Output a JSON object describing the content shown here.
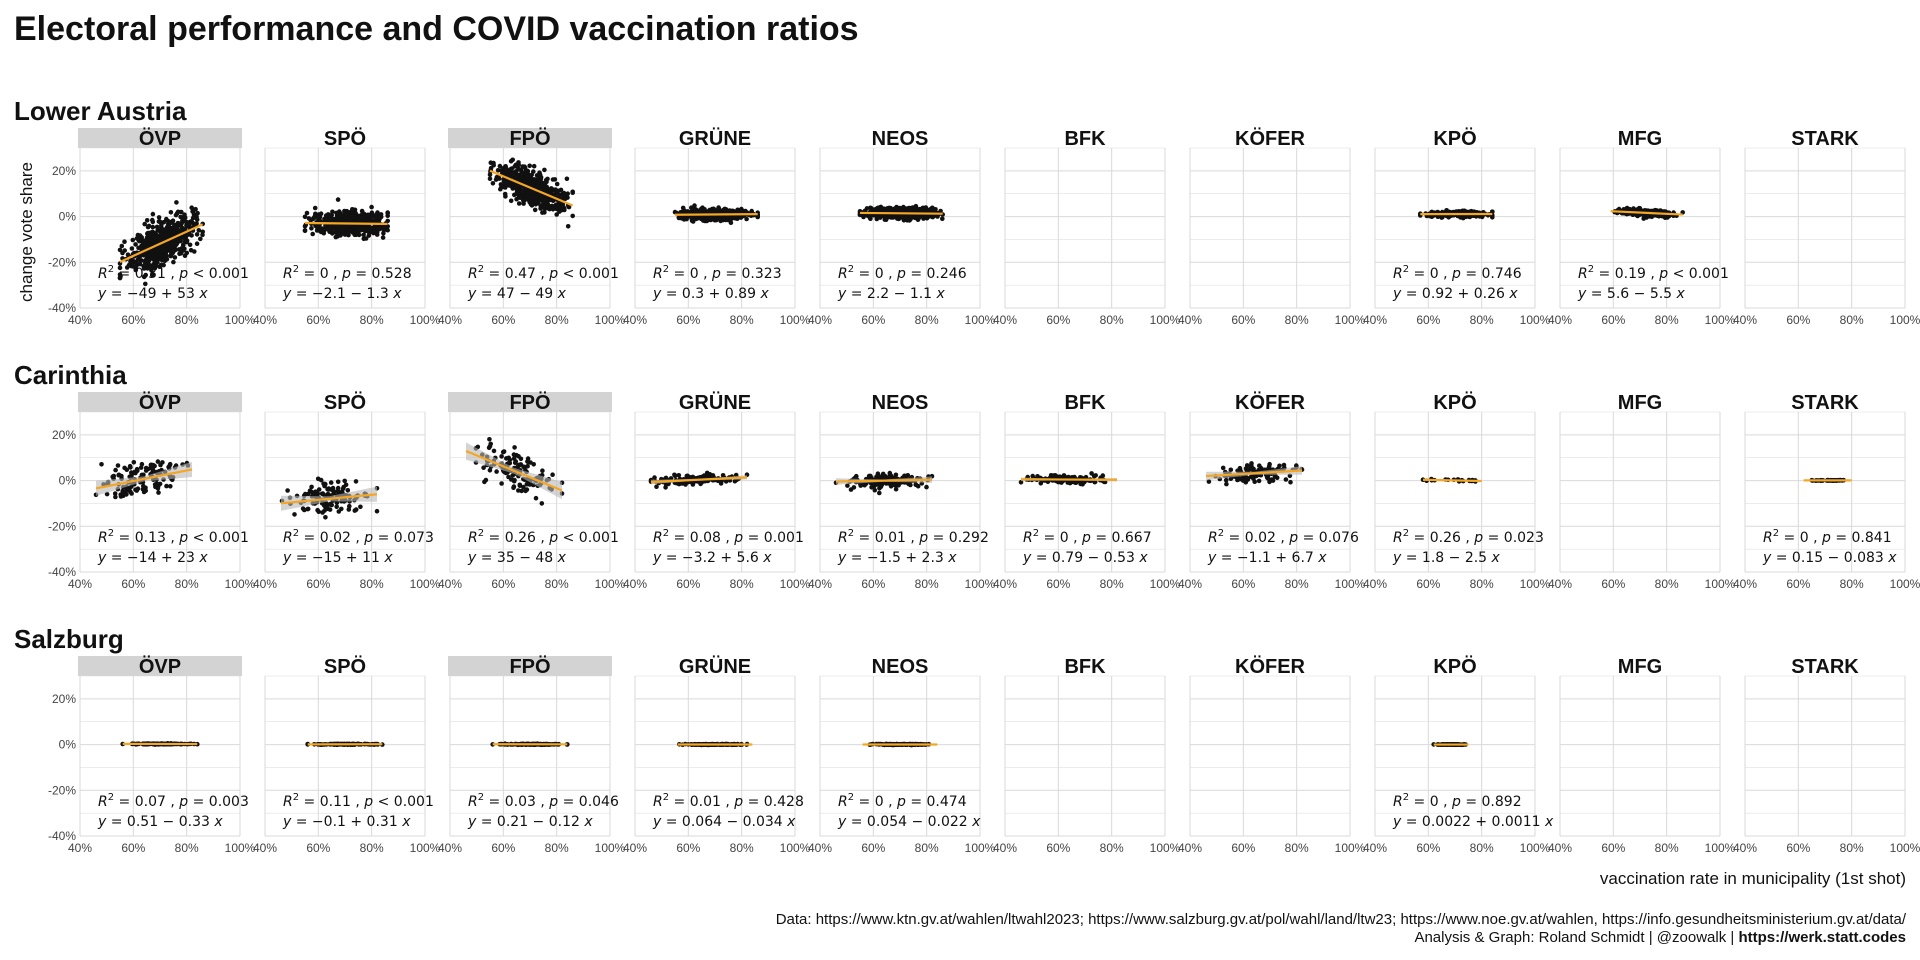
{
  "title": "Electoral performance and COVID vaccination ratios",
  "x_axis_title": "vaccination rate in municipality (1st shot)",
  "y_axis_title": "change vote share",
  "caption_line1": "Data: https://www.ktn.gv.at/wahlen/ltwahl2023; https://www.salzburg.gv.at/pol/wahl/land/ltw23; https://www.noe.gv.at/wahlen, https://info.gesundheitsministerium.gv.at/data/",
  "caption_line2_prefix": "Analysis & Graph: Roland Schmidt | @zoowalk | ",
  "caption_line2_link": "https://werk.statt.codes",
  "colors": {
    "point": "#111111",
    "fit": "#f5a623",
    "ribbon": "#b8b8b8",
    "grid": "#d9d9d9",
    "strip_highlight": "#d3d3d3"
  },
  "chart_data": {
    "type": "scatter",
    "x_ticks": [
      "40%",
      "60%",
      "80%",
      "100%"
    ],
    "y_ticks": [
      "20%",
      "0%",
      "-20%",
      "-40%"
    ],
    "xlim": [
      0.4,
      1.0
    ],
    "ylim": [
      -0.4,
      0.3
    ],
    "parties": [
      "ÖVP",
      "SPÖ",
      "FPÖ",
      "GRÜNE",
      "NEOS",
      "BFK",
      "KÖFER",
      "KPÖ",
      "MFG",
      "STARK"
    ],
    "highlighted_parties": [
      "ÖVP",
      "FPÖ"
    ],
    "regions": [
      {
        "name": "Lower Austria",
        "panels": [
          {
            "party": "ÖVP",
            "r2": "0.31",
            "p": "< 0.001",
            "eq": "−49 + 53",
            "intercept": -0.49,
            "slope": 0.53,
            "n": 560,
            "sd": 0.05,
            "x_range": [
              0.55,
              0.86
            ],
            "ribbon": false
          },
          {
            "party": "SPÖ",
            "r2": "0",
            "p": "= 0.528",
            "eq": "−2.1 − 1.3",
            "intercept": -0.021,
            "slope": -0.013,
            "n": 560,
            "sd": 0.025,
            "x_range": [
              0.55,
              0.86
            ],
            "ribbon": false
          },
          {
            "party": "FPÖ",
            "r2": "0.47",
            "p": "< 0.001",
            "eq": "47 − 49",
            "intercept": 0.47,
            "slope": -0.49,
            "n": 560,
            "sd": 0.035,
            "x_range": [
              0.55,
              0.86
            ],
            "ribbon": false
          },
          {
            "party": "GRÜNE",
            "r2": "0",
            "p": "= 0.323",
            "eq": "0.3 + 0.89",
            "intercept": 0.003,
            "slope": 0.0089,
            "n": 560,
            "sd": 0.012,
            "x_range": [
              0.55,
              0.86
            ],
            "ribbon": false
          },
          {
            "party": "NEOS",
            "r2": "0",
            "p": "= 0.246",
            "eq": "2.2 − 1.1",
            "intercept": 0.022,
            "slope": -0.011,
            "n": 560,
            "sd": 0.012,
            "x_range": [
              0.55,
              0.86
            ],
            "ribbon": false
          },
          {
            "party": "BFK",
            "empty": true
          },
          {
            "party": "KÖFER",
            "empty": true
          },
          {
            "party": "KPÖ",
            "r2": "0",
            "p": "= 0.746",
            "eq": "0.92 + 0.26",
            "intercept": 0.0092,
            "slope": 0.0026,
            "n": 300,
            "sd": 0.006,
            "x_range": [
              0.57,
              0.84
            ],
            "ribbon": false
          },
          {
            "party": "MFG",
            "r2": "0.19",
            "p": "< 0.001",
            "eq": "5.6 − 5.5",
            "intercept": 0.056,
            "slope": -0.055,
            "n": 300,
            "sd": 0.007,
            "x_range": [
              0.59,
              0.86
            ],
            "ribbon": false
          },
          {
            "party": "STARK",
            "empty": true
          }
        ]
      },
      {
        "name": "Carinthia",
        "panels": [
          {
            "party": "ÖVP",
            "r2": "0.13",
            "p": "< 0.001",
            "eq": "−14 + 23",
            "intercept": -0.14,
            "slope": 0.23,
            "n": 130,
            "sd": 0.035,
            "x_range": [
              0.46,
              0.82
            ],
            "ribbon": true
          },
          {
            "party": "SPÖ",
            "r2": "0.02",
            "p": "= 0.073",
            "eq": "−15 + 11",
            "intercept": -0.15,
            "slope": 0.11,
            "n": 130,
            "sd": 0.035,
            "x_range": [
              0.46,
              0.82
            ],
            "ribbon": true
          },
          {
            "party": "FPÖ",
            "r2": "0.26",
            "p": "< 0.001",
            "eq": "35 − 48",
            "intercept": 0.35,
            "slope": -0.48,
            "n": 130,
            "sd": 0.04,
            "x_range": [
              0.46,
              0.82
            ],
            "ribbon": true
          },
          {
            "party": "GRÜNE",
            "r2": "0.08",
            "p": "= 0.001",
            "eq": "−3.2 + 5.6",
            "intercept": -0.032,
            "slope": 0.056,
            "n": 130,
            "sd": 0.01,
            "x_range": [
              0.46,
              0.82
            ],
            "ribbon": true
          },
          {
            "party": "NEOS",
            "r2": "0.01",
            "p": "= 0.292",
            "eq": "−1.5 + 2.3",
            "intercept": -0.015,
            "slope": 0.023,
            "n": 130,
            "sd": 0.015,
            "x_range": [
              0.46,
              0.82
            ],
            "ribbon": true
          },
          {
            "party": "BFK",
            "r2": "0",
            "p": "= 0.667",
            "eq": "0.79 − 0.53",
            "intercept": 0.0079,
            "slope": -0.0053,
            "n": 130,
            "sd": 0.008,
            "x_range": [
              0.46,
              0.82
            ],
            "ribbon": true
          },
          {
            "party": "KÖFER",
            "r2": "0.02",
            "p": "= 0.076",
            "eq": "−1.1 + 6.7",
            "intercept": -0.011,
            "slope": 0.067,
            "n": 130,
            "sd": 0.02,
            "x_range": [
              0.46,
              0.82
            ],
            "ribbon": true
          },
          {
            "party": "KPÖ",
            "r2": "0.26",
            "p": "= 0.023",
            "eq": "1.8 − 2.5",
            "intercept": 0.018,
            "slope": -0.025,
            "n": 20,
            "sd": 0.003,
            "x_range": [
              0.58,
              0.8
            ],
            "ribbon": false
          },
          {
            "party": "MFG",
            "empty": true
          },
          {
            "party": "STARK",
            "r2": "0",
            "p": "= 0.841",
            "eq": "0.15 − 0.083",
            "intercept": 0.0015,
            "slope": -0.00083,
            "n": 40,
            "sd": 0.001,
            "x_range": [
              0.62,
              0.8
            ],
            "ribbon": false
          }
        ]
      },
      {
        "name": "Salzburg",
        "panels": [
          {
            "party": "ÖVP",
            "r2": "0.07",
            "p": "= 0.003",
            "eq": "0.51 − 0.33",
            "intercept": 0.0051,
            "slope": -0.0033,
            "n": 120,
            "sd": 0.001,
            "x_range": [
              0.56,
              0.84
            ],
            "ribbon": false
          },
          {
            "party": "SPÖ",
            "r2": "0.11",
            "p": "< 0.001",
            "eq": "−0.1 + 0.31",
            "intercept": -0.001,
            "slope": 0.0031,
            "n": 120,
            "sd": 0.001,
            "x_range": [
              0.56,
              0.84
            ],
            "ribbon": false
          },
          {
            "party": "FPÖ",
            "r2": "0.03",
            "p": "= 0.046",
            "eq": "0.21 − 0.12",
            "intercept": 0.0021,
            "slope": -0.0012,
            "n": 120,
            "sd": 0.001,
            "x_range": [
              0.56,
              0.84
            ],
            "ribbon": false
          },
          {
            "party": "GRÜNE",
            "r2": "0.01",
            "p": "= 0.428",
            "eq": "0.064 − 0.034",
            "intercept": 0.00064,
            "slope": -0.00034,
            "n": 120,
            "sd": 0.001,
            "x_range": [
              0.56,
              0.84
            ],
            "ribbon": false
          },
          {
            "party": "NEOS",
            "r2": "0",
            "p": "= 0.474",
            "eq": "0.054 − 0.022",
            "intercept": 0.00054,
            "slope": -0.00022,
            "n": 120,
            "sd": 0.001,
            "x_range": [
              0.56,
              0.84
            ],
            "ribbon": false
          },
          {
            "party": "BFK",
            "empty": true
          },
          {
            "party": "KÖFER",
            "empty": true
          },
          {
            "party": "KPÖ",
            "r2": "0",
            "p": "= 0.892",
            "eq": "0.0022 + 0.0011",
            "intercept": 2.2e-05,
            "slope": 1.1e-05,
            "n": 60,
            "sd": 0.0005,
            "x_range": [
              0.62,
              0.75
            ],
            "ribbon": false
          },
          {
            "party": "MFG",
            "empty": true
          },
          {
            "party": "STARK",
            "empty": true
          }
        ]
      }
    ]
  }
}
